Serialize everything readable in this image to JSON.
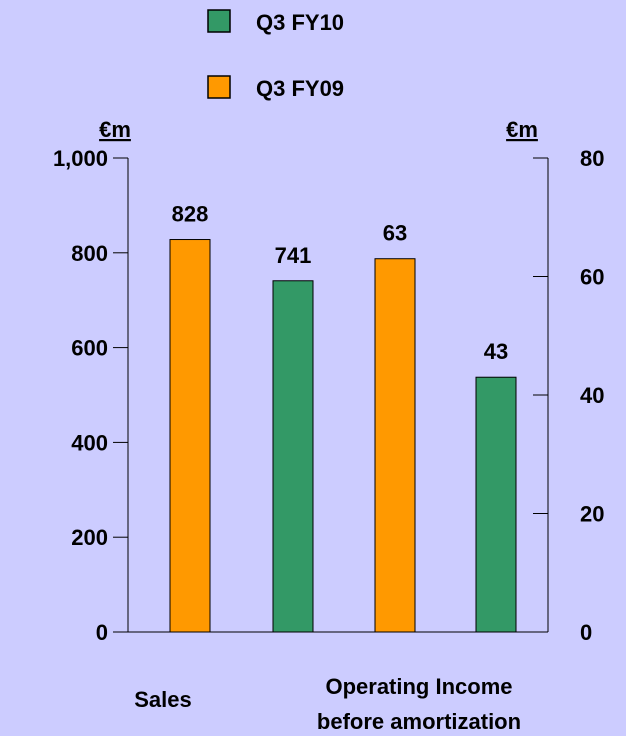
{
  "chart_data": {
    "type": "bar",
    "legend": [
      {
        "name": "Q3 FY10",
        "color": "#339966"
      },
      {
        "name": "Q3 FY09",
        "color": "#ff9900"
      }
    ],
    "left_axis": {
      "unit": "€m",
      "ylim": [
        0,
        1000
      ],
      "ticks": [
        "0",
        "200",
        "400",
        "600",
        "800",
        "1,000"
      ]
    },
    "right_axis": {
      "unit": "€m",
      "ylim": [
        0,
        80
      ],
      "ticks": [
        "0",
        "20",
        "40",
        "60",
        "80"
      ]
    },
    "groups": [
      {
        "label": "Sales",
        "axis": "left",
        "bars": [
          {
            "series": "Q3 FY09",
            "value": 828,
            "label": "828"
          },
          {
            "series": "Q3 FY10",
            "value": 741,
            "label": "741"
          }
        ]
      },
      {
        "label": "Operating Income before amortization",
        "label_lines": [
          "Operating Income",
          "before amortization"
        ],
        "axis": "right",
        "bars": [
          {
            "series": "Q3 FY09",
            "value": 63,
            "label": "63"
          },
          {
            "series": "Q3 FY10",
            "value": 43,
            "label": "43"
          }
        ]
      }
    ],
    "grid": false,
    "legend_position": "top-center"
  }
}
